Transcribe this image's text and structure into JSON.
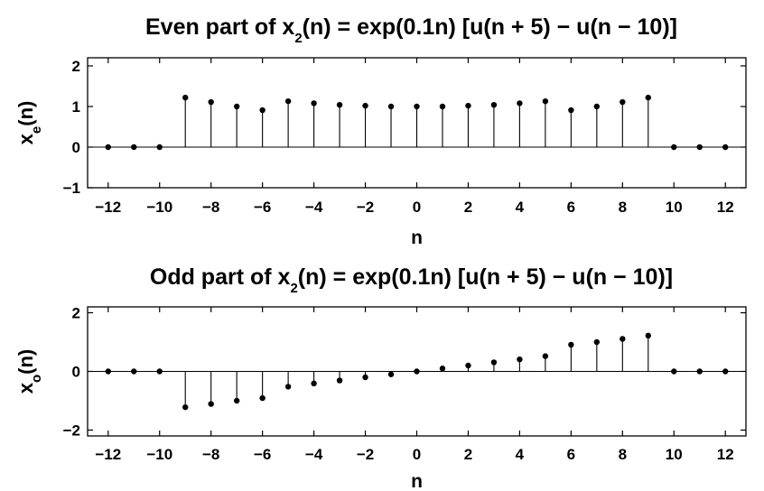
{
  "chart_data": [
    {
      "type": "stem",
      "title": {
        "pre": "Even part of x",
        "sub": "2",
        "post": "(n) = exp(0.1n) [u(n + 5) − u(n − 10)]"
      },
      "xlabel": "n",
      "ylabel": {
        "pre": "x",
        "sub": "e",
        "post": "(n)"
      },
      "xlim": [
        -12.8,
        12.8
      ],
      "ylim": [
        -1,
        2.2
      ],
      "xticks": [
        -12,
        -10,
        -8,
        -6,
        -4,
        -2,
        0,
        2,
        4,
        6,
        8,
        10,
        12
      ],
      "yticks": [
        -1,
        0,
        1,
        2
      ],
      "x": [
        -12,
        -11,
        -10,
        -9,
        -8,
        -7,
        -6,
        -5,
        -4,
        -3,
        -2,
        -1,
        0,
        1,
        2,
        3,
        4,
        5,
        6,
        7,
        8,
        9,
        10,
        11,
        12
      ],
      "y": [
        0,
        0,
        0,
        1.22,
        1.11,
        1.0,
        0.91,
        1.13,
        1.08,
        1.04,
        1.02,
        1.0,
        1.0,
        1.0,
        1.02,
        1.04,
        1.08,
        1.13,
        0.91,
        1.0,
        1.11,
        1.22,
        0,
        0,
        0
      ]
    },
    {
      "type": "stem",
      "title": {
        "pre": "Odd part of x",
        "sub": "2",
        "post": "(n) = exp(0.1n) [u(n + 5) − u(n − 10)]"
      },
      "xlabel": "n",
      "ylabel": {
        "pre": "x",
        "sub": "o",
        "post": "(n)"
      },
      "xlim": [
        -12.8,
        12.8
      ],
      "ylim": [
        -2.2,
        2.2
      ],
      "xticks": [
        -12,
        -10,
        -8,
        -6,
        -4,
        -2,
        0,
        2,
        4,
        6,
        8,
        10,
        12
      ],
      "yticks": [
        -2,
        0,
        2
      ],
      "x": [
        -12,
        -11,
        -10,
        -9,
        -8,
        -7,
        -6,
        -5,
        -4,
        -3,
        -2,
        -1,
        0,
        1,
        2,
        3,
        4,
        5,
        6,
        7,
        8,
        9,
        10,
        11,
        12
      ],
      "y": [
        0,
        0,
        0,
        -1.22,
        -1.11,
        -1.0,
        -0.91,
        -0.52,
        -0.41,
        -0.31,
        -0.2,
        -0.1,
        0,
        0.1,
        0.2,
        0.31,
        0.41,
        0.52,
        0.91,
        1.0,
        1.11,
        1.22,
        0,
        0,
        0
      ]
    }
  ]
}
